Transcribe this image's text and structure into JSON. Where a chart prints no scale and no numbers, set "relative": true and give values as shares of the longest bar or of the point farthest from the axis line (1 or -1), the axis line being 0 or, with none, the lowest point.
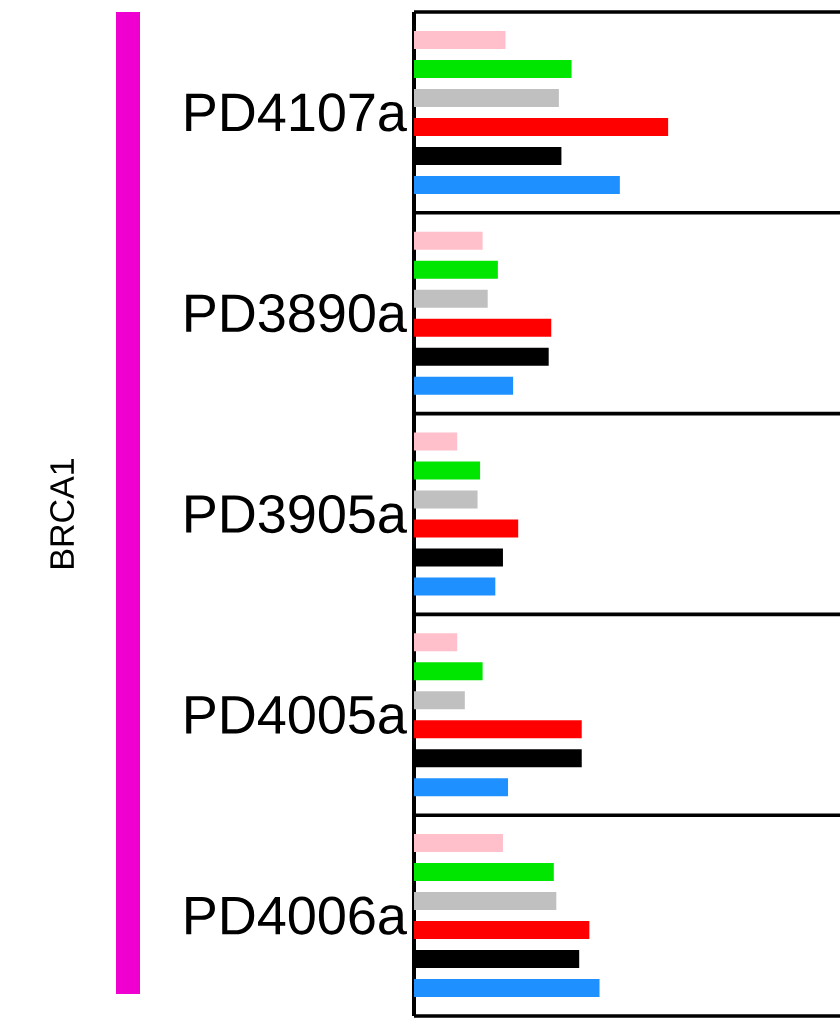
{
  "chart_data": {
    "type": "bar",
    "orientation": "horizontal",
    "relative": true,
    "ylabel": "BRCA1",
    "categories": [
      "PD4107a",
      "PD3890a",
      "PD3905a",
      "PD4005a",
      "PD4006a"
    ],
    "series": [
      {
        "color": "#ffc0cb",
        "values": [
          0.36,
          0.27,
          0.17,
          0.17,
          0.35
        ]
      },
      {
        "color": "#00e600",
        "values": [
          0.62,
          0.33,
          0.26,
          0.27,
          0.55
        ]
      },
      {
        "color": "#c0c0c0",
        "values": [
          0.57,
          0.29,
          0.25,
          0.2,
          0.56
        ]
      },
      {
        "color": "#ff0000",
        "values": [
          1,
          0.54,
          0.41,
          0.66,
          0.69
        ]
      },
      {
        "color": "#000000",
        "values": [
          0.58,
          0.53,
          0.35,
          0.66,
          0.65
        ]
      },
      {
        "color": "#1e90ff",
        "values": [
          0.81,
          0.39,
          0.32,
          0.37,
          0.73
        ]
      }
    ],
    "grid": "y"
  }
}
